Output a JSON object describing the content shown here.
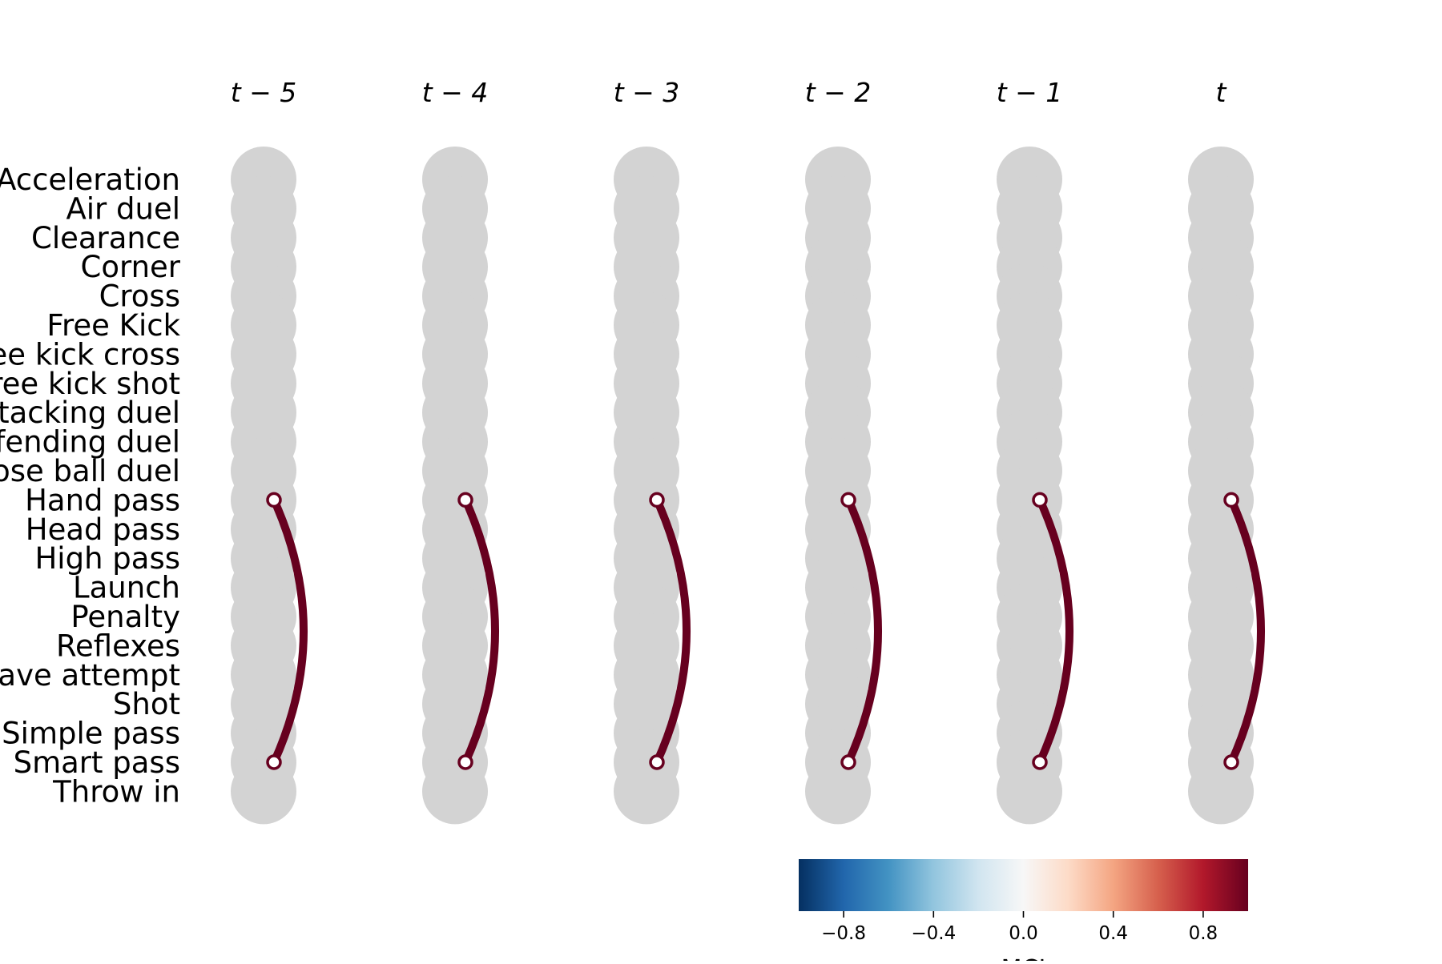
{
  "chart_data": {
    "type": "arc-diagram",
    "timesteps": [
      "t − 5",
      "t − 4",
      "t − 3",
      "t − 2",
      "t − 1",
      "t"
    ],
    "nodes": [
      "Acceleration",
      "Air duel",
      "Clearance",
      "Corner",
      "Cross",
      "Free Kick",
      "Free kick cross",
      "Free kick shot",
      "Ground attacking duel",
      "Ground defending duel",
      "Ground loose ball duel",
      "Hand pass",
      "Head pass",
      "High pass",
      "Launch",
      "Penalty",
      "Reflexes",
      "Save attempt",
      "Shot",
      "Simple pass",
      "Smart pass",
      "Throw in"
    ],
    "links": [
      {
        "timestep": "t − 5",
        "source": "Hand pass",
        "target": "Smart pass",
        "value": 1.0
      },
      {
        "timestep": "t − 4",
        "source": "Hand pass",
        "target": "Smart pass",
        "value": 1.0
      },
      {
        "timestep": "t − 3",
        "source": "Hand pass",
        "target": "Smart pass",
        "value": 1.0
      },
      {
        "timestep": "t − 2",
        "source": "Hand pass",
        "target": "Smart pass",
        "value": 1.0
      },
      {
        "timestep": "t − 1",
        "source": "Hand pass",
        "target": "Smart pass",
        "value": 1.0
      },
      {
        "timestep": "t",
        "source": "Hand pass",
        "target": "Smart pass",
        "value": 1.0
      }
    ],
    "colorbar": {
      "label": "MCI",
      "range": [
        -1.0,
        1.0
      ],
      "ticks": [
        -0.8,
        -0.4,
        0.0,
        0.4,
        0.8
      ],
      "tick_labels": [
        "−0.8",
        "−0.4",
        "0.0",
        "0.4",
        "0.8"
      ],
      "colormap": "RdBu_r"
    }
  },
  "colors": {
    "node": "#d3d3d3",
    "link": "#67001f",
    "endpoint_fill": "#ffffff"
  }
}
